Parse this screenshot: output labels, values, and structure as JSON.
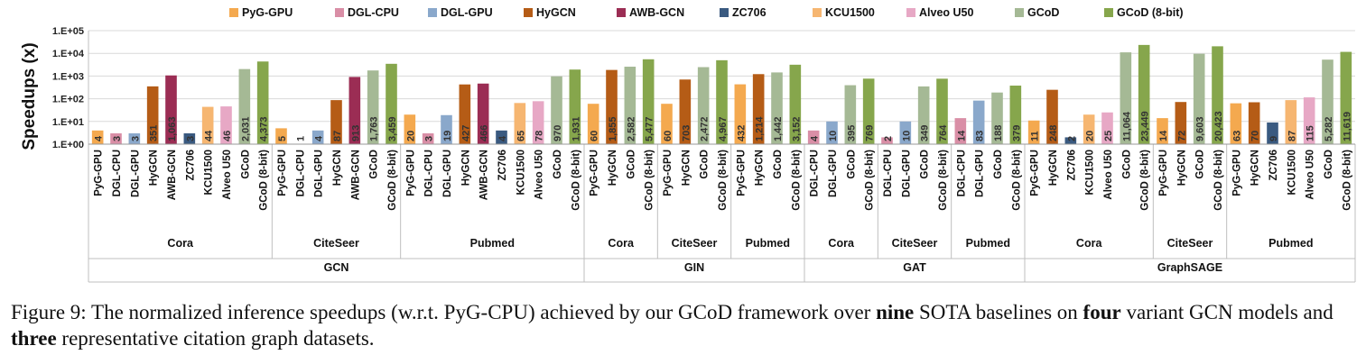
{
  "chart_data": {
    "type": "bar",
    "ylabel": "Speedups (x)",
    "yscale": "log",
    "ylim": [
      1,
      100000
    ],
    "yticks": [
      "1.E+00",
      "1.E+01",
      "1.E+02",
      "1.E+03",
      "1.E+04",
      "1.E+05"
    ],
    "grid": true,
    "legend_position": "top",
    "legend": [
      {
        "name": "PyG-GPU",
        "color": "#F4A94F"
      },
      {
        "name": "DGL-CPU",
        "color": "#D98EA6"
      },
      {
        "name": "DGL-GPU",
        "color": "#8AA8CB"
      },
      {
        "name": "HyGCN",
        "color": "#B55C16"
      },
      {
        "name": "AWB-GCN",
        "color": "#9B2D54"
      },
      {
        "name": "ZC706",
        "color": "#3A5A80"
      },
      {
        "name": "KCU1500",
        "color": "#F6B671"
      },
      {
        "name": "Alveo U50",
        "color": "#E7A8C5"
      },
      {
        "name": "GCoD",
        "color": "#A5B995"
      },
      {
        "name": "GCoD (8-bit)",
        "color": "#86A64C"
      }
    ],
    "models": [
      {
        "name": "GCN",
        "datasets": [
          {
            "name": "Cora",
            "bars": [
              {
                "label": "PyG-GPU",
                "value": 4
              },
              {
                "label": "DGL-CPU",
                "value": 3
              },
              {
                "label": "DGL-GPU",
                "value": 3
              },
              {
                "label": "HyGCN",
                "value": 351
              },
              {
                "label": "AWB-GCN",
                "value": 1063
              },
              {
                "label": "ZC706",
                "value": 3
              },
              {
                "label": "KCU1500",
                "value": 44
              },
              {
                "label": "Alveo U50",
                "value": 46
              },
              {
                "label": "GCoD",
                "value": 2031
              },
              {
                "label": "GCoD (8-bit)",
                "value": 4373
              }
            ]
          },
          {
            "name": "CiteSeer",
            "bars": [
              {
                "label": "PyG-GPU",
                "value": 5
              },
              {
                "label": "DGL-CPU",
                "value": 1
              },
              {
                "label": "DGL-GPU",
                "value": 4
              },
              {
                "label": "HyGCN",
                "value": 87
              },
              {
                "label": "AWB-GCN",
                "value": 913
              },
              {
                "label": "GCoD",
                "value": 1763
              },
              {
                "label": "GCoD (8-bit)",
                "value": 3459
              }
            ]
          },
          {
            "name": "Pubmed",
            "bars": [
              {
                "label": "PyG-GPU",
                "value": 20
              },
              {
                "label": "DGL-CPU",
                "value": 3
              },
              {
                "label": "DGL-GPU",
                "value": 19
              },
              {
                "label": "HyGCN",
                "value": 427
              },
              {
                "label": "AWB-GCN",
                "value": 466
              },
              {
                "label": "ZC706",
                "value": 4
              },
              {
                "label": "KCU1500",
                "value": 65
              },
              {
                "label": "Alveo U50",
                "value": 78
              },
              {
                "label": "GCoD",
                "value": 970
              },
              {
                "label": "GCoD (8-bit)",
                "value": 1931
              }
            ]
          }
        ]
      },
      {
        "name": "GIN",
        "datasets": [
          {
            "name": "Cora",
            "bars": [
              {
                "label": "PyG-GPU",
                "value": 60
              },
              {
                "label": "HyGCN",
                "value": 1855
              },
              {
                "label": "GCoD",
                "value": 2582
              },
              {
                "label": "GCoD (8-bit)",
                "value": 5477
              }
            ]
          },
          {
            "name": "CiteSeer",
            "bars": [
              {
                "label": "PyG-GPU",
                "value": 60
              },
              {
                "label": "HyGCN",
                "value": 703
              },
              {
                "label": "GCoD",
                "value": 2472
              },
              {
                "label": "GCoD (8-bit)",
                "value": 4967
              }
            ]
          },
          {
            "name": "Pubmed",
            "bars": [
              {
                "label": "PyG-GPU",
                "value": 432
              },
              {
                "label": "HyGCN",
                "value": 1214
              },
              {
                "label": "GCoD",
                "value": 1442
              },
              {
                "label": "GCoD (8-bit)",
                "value": 3152
              }
            ]
          }
        ]
      },
      {
        "name": "GAT",
        "datasets": [
          {
            "name": "Cora",
            "bars": [
              {
                "label": "DGL-CPU",
                "value": 4
              },
              {
                "label": "DGL-GPU",
                "value": 10
              },
              {
                "label": "GCoD",
                "value": 395
              },
              {
                "label": "GCoD (8-bit)",
                "value": 769
              }
            ]
          },
          {
            "name": "CiteSeer",
            "bars": [
              {
                "label": "DGL-CPU",
                "value": 2
              },
              {
                "label": "DGL-GPU",
                "value": 10
              },
              {
                "label": "GCoD",
                "value": 349
              },
              {
                "label": "GCoD (8-bit)",
                "value": 764
              }
            ]
          },
          {
            "name": "Pubmed",
            "bars": [
              {
                "label": "DGL-CPU",
                "value": 14
              },
              {
                "label": "DGL-GPU",
                "value": 83
              },
              {
                "label": "GCoD",
                "value": 188
              },
              {
                "label": "GCoD (8-bit)",
                "value": 379
              }
            ]
          }
        ]
      },
      {
        "name": "GraphSAGE",
        "datasets": [
          {
            "name": "Cora",
            "bars": [
              {
                "label": "PyG-GPU",
                "value": 11
              },
              {
                "label": "HyGCN",
                "value": 248
              },
              {
                "label": "ZC706",
                "value": 2
              },
              {
                "label": "KCU1500",
                "value": 20
              },
              {
                "label": "Alveo U50",
                "value": 25
              },
              {
                "label": "GCoD",
                "value": 11064
              },
              {
                "label": "GCoD (8-bit)",
                "value": 23449
              }
            ]
          },
          {
            "name": "CiteSeer",
            "bars": [
              {
                "label": "PyG-GPU",
                "value": 14
              },
              {
                "label": "HyGCN",
                "value": 72
              },
              {
                "label": "GCoD",
                "value": 9603
              },
              {
                "label": "GCoD (8-bit)",
                "value": 20423
              }
            ]
          },
          {
            "name": "Pubmed",
            "bars": [
              {
                "label": "PyG-GPU",
                "value": 63
              },
              {
                "label": "HyGCN",
                "value": 70
              },
              {
                "label": "ZC706",
                "value": 9
              },
              {
                "label": "KCU1500",
                "value": 87
              },
              {
                "label": "Alveo U50",
                "value": 115
              },
              {
                "label": "GCoD",
                "value": 5282
              },
              {
                "label": "GCoD (8-bit)",
                "value": 11619
              }
            ]
          }
        ]
      }
    ]
  },
  "caption": {
    "prefix": "Figure 9: The normalized inference speedups (w.r.t. PyG-CPU) achieved by our GCoD framework over ",
    "bold1": "nine",
    "mid1": " SOTA baselines on ",
    "bold2": "four",
    "mid2": " variant GCN models and ",
    "bold3": "three",
    "suffix": " representative citation graph datasets."
  }
}
